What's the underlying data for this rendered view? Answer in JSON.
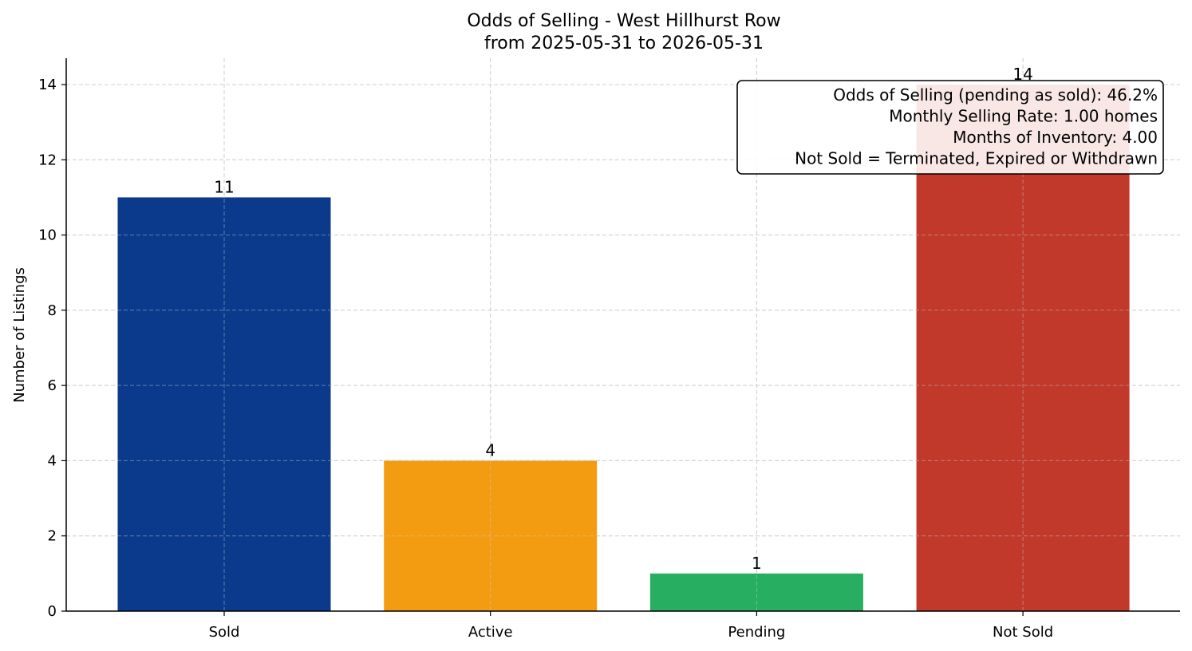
{
  "chart_data": {
    "type": "bar",
    "title": "Odds of Selling - West Hillhurst Row",
    "subtitle": "from 2025-05-31 to 2026-05-31",
    "xlabel": "",
    "ylabel": "Number of Listings",
    "categories": [
      "Sold",
      "Active",
      "Pending",
      "Not Sold"
    ],
    "values": [
      11,
      4,
      1,
      14
    ],
    "colors": [
      "#0b3a8c",
      "#f39c12",
      "#27ae60",
      "#c0392b"
    ],
    "ylim": [
      0,
      14.7
    ],
    "yticks": [
      0,
      2,
      4,
      6,
      8,
      10,
      12,
      14
    ],
    "grid": true,
    "annotation": {
      "lines": [
        "Odds of Selling (pending as sold): 46.2%",
        "Monthly Selling Rate: 1.00 homes",
        "Months of Inventory: 4.00",
        "Not Sold = Terminated, Expired or Withdrawn"
      ],
      "placement": "top-right"
    }
  }
}
